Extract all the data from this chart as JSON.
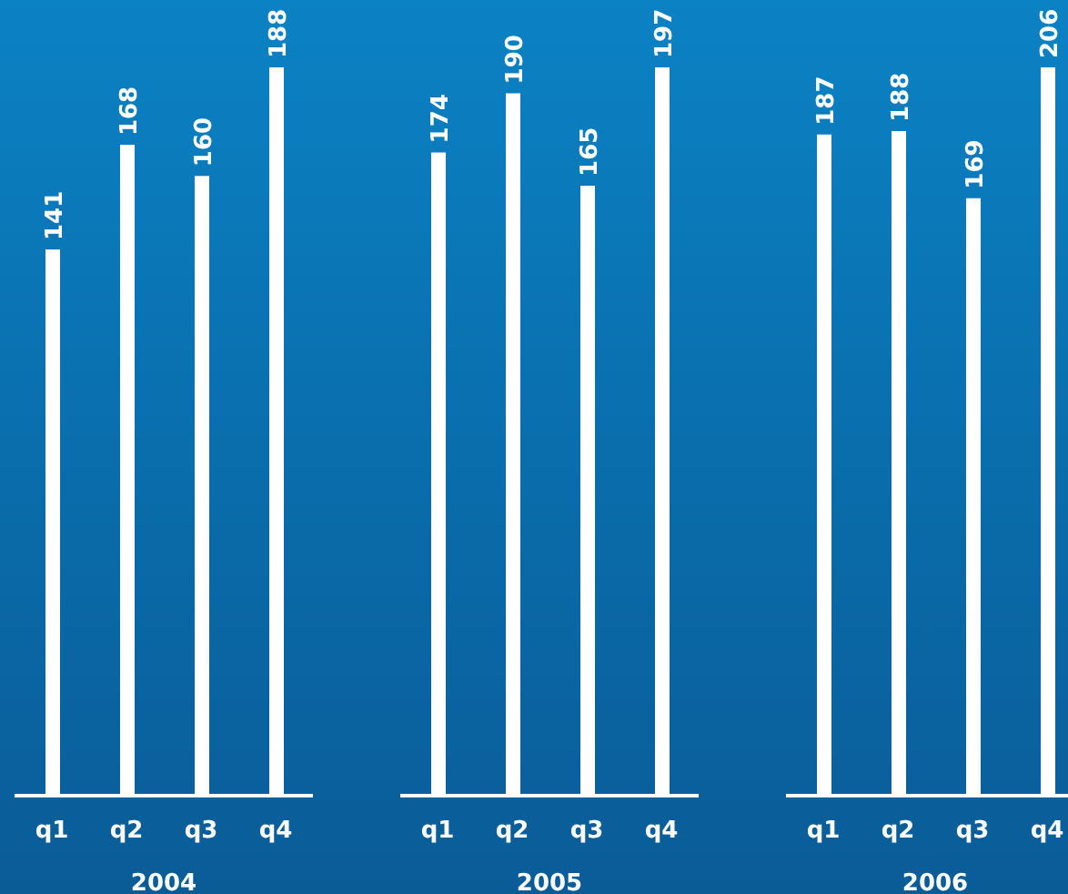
{
  "chart_data": [
    {
      "type": "bar",
      "xlabel": "2004",
      "categories": [
        "q1",
        "q2",
        "q3",
        "q4"
      ],
      "values": [
        141,
        168,
        160,
        188
      ],
      "color": "#ffffff",
      "data_labels": true,
      "tick_labels": "x"
    },
    {
      "type": "bar",
      "xlabel": "2005",
      "categories": [
        "q1",
        "q2",
        "q3",
        "q4"
      ],
      "values": [
        174,
        190,
        165,
        197
      ],
      "color": "#ffffff",
      "data_labels": true,
      "tick_labels": "x"
    },
    {
      "type": "bar",
      "xlabel": "2006",
      "categories": [
        "q1",
        "q2",
        "q3",
        "q4"
      ],
      "values": [
        187,
        188,
        169,
        206
      ],
      "color": "#ffffff",
      "data_labels": true,
      "tick_labels": "x"
    }
  ]
}
